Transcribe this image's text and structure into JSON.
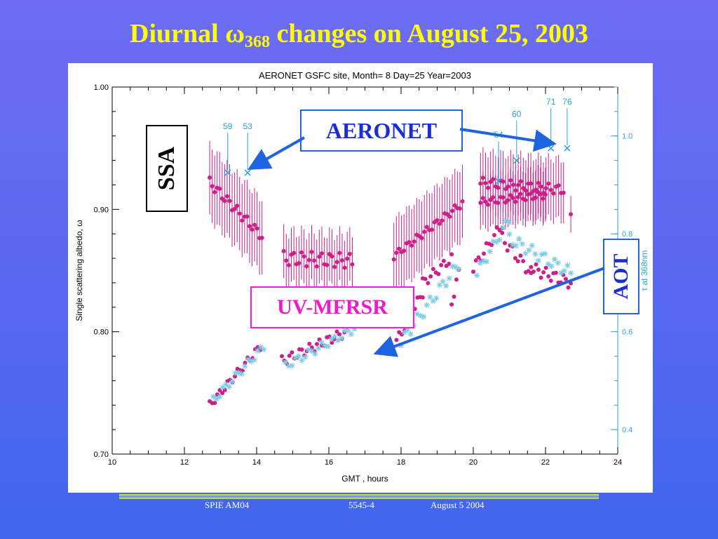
{
  "slide": {
    "title_pre": "Diurnal ",
    "title_symbol": "ω",
    "title_sub": "368",
    "title_post": " changes on August 25, 2003",
    "footer": {
      "left": "SPIE AM04",
      "center": "5545-4",
      "right": "August 5  2004"
    },
    "colors": {
      "background_top": "#6e6cf2",
      "background_bottom": "#3f66ec",
      "title": "#ffff00",
      "footer_rule": "#bfe040"
    }
  },
  "callouts": {
    "ssa": "SSA",
    "aeronet": "AERONET",
    "uvmfrsr": "UV-MFRSR",
    "aot": "AOT",
    "colors": {
      "aeronet": "#1b2fd0",
      "uvmfrsr": "#f018c8",
      "arrow": "#1e63e0"
    }
  },
  "chart_data": {
    "type": "scatter",
    "title": "AERONET GSFC site, Month= 8  Day=25  Year=2003",
    "xlabel": "GMT , hours",
    "ylabel": "Single scattering albedo, ω",
    "y2label": "τ at 368nm",
    "xlim": [
      10,
      24
    ],
    "ylim": [
      0.7,
      1.0
    ],
    "y2lim": [
      0.35,
      1.1
    ],
    "xticks": [
      "10",
      "12",
      "14",
      "16",
      "18",
      "20",
      "22",
      "24"
    ],
    "yticks": [
      "0.70",
      "0.80",
      "0.90",
      "1.00"
    ],
    "y2ticks": [
      "0.4",
      "0.6",
      "0.8",
      "1.0"
    ],
    "grid": false,
    "colors": {
      "ssa": "#cc1f8a",
      "aot": "#7fcce6",
      "aeronet": "#27a3dd"
    },
    "series": [
      {
        "key": "uv_mfrsr_ssa",
        "axis": "left",
        "marker": "dot",
        "errorbars": true,
        "segments": [
          {
            "x0": 12.7,
            "x1": 14.15,
            "y0": 0.922,
            "y1": 0.878,
            "wobble": 0.004,
            "err": 0.03
          },
          {
            "x0": 14.75,
            "x1": 16.65,
            "y0": 0.86,
            "y1": 0.858,
            "wobble": 0.006,
            "err": 0.022
          },
          {
            "x0": 17.8,
            "x1": 19.7,
            "y0": 0.862,
            "y1": 0.905,
            "wobble": 0.003,
            "err": 0.03
          },
          {
            "x0": 20.2,
            "x1": 22.0,
            "y0": 0.906,
            "y1": 0.912,
            "wobble": 0.003,
            "err": 0.022
          },
          {
            "x0": 20.2,
            "x1": 22.5,
            "y0": 0.922,
            "y1": 0.916,
            "wobble": 0.004,
            "err": 0.025
          }
        ],
        "extra_points": [
          {
            "x": 22.7,
            "y": 0.896,
            "err": 0.015
          }
        ]
      },
      {
        "key": "uv_mfrsr_aot",
        "axis": "right",
        "marker": "dot",
        "segments": [
          {
            "x0": 12.7,
            "x1": 14.1,
            "y0": 0.45,
            "y1": 0.57,
            "wobble": 0.008
          },
          {
            "x0": 14.7,
            "x1": 16.5,
            "y0": 0.54,
            "y1": 0.6,
            "wobble": 0.01
          },
          {
            "x0": 16.5,
            "x1": 16.6,
            "y0": 0.62,
            "y1": 0.65,
            "wobble": 0.004
          },
          {
            "x0": 17.8,
            "x1": 18.6,
            "y0": 0.57,
            "y1": 0.68,
            "wobble": 0.01
          },
          {
            "x0": 18.6,
            "x1": 19.4,
            "y0": 0.7,
            "y1": 0.75,
            "wobble": 0.01
          },
          {
            "x0": 19.4,
            "x1": 19.6,
            "y0": 0.66,
            "y1": 0.72,
            "wobble": 0.01
          },
          {
            "x0": 20.0,
            "x1": 20.8,
            "y0": 0.73,
            "y1": 0.82,
            "wobble": 0.01
          },
          {
            "x0": 20.8,
            "x1": 21.6,
            "y0": 0.79,
            "y1": 0.72,
            "wobble": 0.012
          },
          {
            "x0": 21.6,
            "x1": 22.7,
            "y0": 0.73,
            "y1": 0.7,
            "wobble": 0.012
          }
        ]
      },
      {
        "key": "uv_mfrsr_aot_star",
        "axis": "right",
        "marker": "star",
        "segments": [
          {
            "x0": 12.8,
            "x1": 14.2,
            "y0": 0.46,
            "y1": 0.57,
            "wobble": 0.008
          },
          {
            "x0": 14.8,
            "x1": 16.8,
            "y0": 0.53,
            "y1": 0.61,
            "wobble": 0.008
          },
          {
            "x0": 18.0,
            "x1": 19.6,
            "y0": 0.58,
            "y1": 0.74,
            "wobble": 0.012
          },
          {
            "x0": 20.1,
            "x1": 21.0,
            "y0": 0.72,
            "y1": 0.83,
            "wobble": 0.01
          },
          {
            "x0": 21.0,
            "x1": 22.7,
            "y0": 0.79,
            "y1": 0.72,
            "wobble": 0.012
          }
        ]
      },
      {
        "key": "aeronet_ssa",
        "axis": "left",
        "marker": "x",
        "points": [
          {
            "x": 13.2,
            "y": 0.93,
            "label": "59"
          },
          {
            "x": 13.75,
            "y": 0.93,
            "label": "53"
          },
          {
            "x": 20.7,
            "y": 0.923,
            "label": "54"
          },
          {
            "x": 21.2,
            "y": 0.94,
            "label": "60"
          },
          {
            "x": 22.15,
            "y": 0.95,
            "label": "71"
          },
          {
            "x": 22.6,
            "y": 0.95,
            "label": "76"
          }
        ]
      }
    ]
  }
}
